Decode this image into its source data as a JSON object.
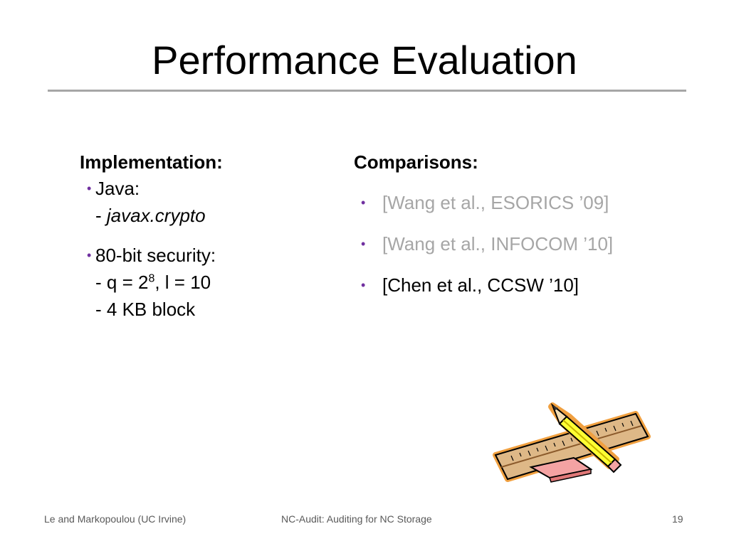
{
  "slide": {
    "title": "Performance Evaluation",
    "left": {
      "heading": "Implementation:",
      "java_label": "Java:",
      "java_dash": "- ",
      "java_lib": "javax.crypto",
      "security_label": "80-bit security:",
      "param_q_prefix": "- q = 2",
      "param_q_exp": "8",
      "param_l": ", l = 10",
      "block": "- 4 KB block"
    },
    "right": {
      "heading": "Comparisons:",
      "items": [
        {
          "text": "[Wang et al., ESORICS ’09]"
        },
        {
          "text": "[Wang et al., INFOCOM ’10]"
        },
        {
          "text": "[Chen et al., CCSW  ’10]"
        }
      ]
    },
    "bullet_glyph": "•",
    "colors": {
      "bullet": "#7030a0",
      "muted_text": "#a6a6a6",
      "rule": "#a6a6a6",
      "ruler": "#deb887",
      "pencil": "#ffff33",
      "eraser": "#f4a3a3"
    },
    "clipart_icon": "ruler-pencil-eraser-clipart"
  },
  "footer": {
    "left": "Le and Markopoulou (UC Irvine)",
    "center": "NC-Audit: Auditing for NC Storage",
    "page": "19"
  }
}
